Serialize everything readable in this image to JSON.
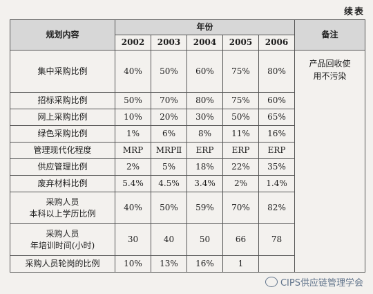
{
  "continued_label": "续表",
  "header": {
    "item": "规划内容",
    "years_label": "年份",
    "note": "备注",
    "years": [
      "2002",
      "2003",
      "2004",
      "2005",
      "2006"
    ]
  },
  "rows": [
    {
      "label": "集中采购比例",
      "values": [
        "40%",
        "50%",
        "60%",
        "75%",
        "80%"
      ],
      "note": "产品回收使用不污染"
    },
    {
      "label": "招标采购比例",
      "values": [
        "50%",
        "70%",
        "80%",
        "75%",
        "60%"
      ]
    },
    {
      "label": "网上采购比例",
      "values": [
        "10%",
        "20%",
        "30%",
        "50%",
        "65%"
      ]
    },
    {
      "label": "绿色采购比例",
      "values": [
        "1%",
        "6%",
        "8%",
        "11%",
        "16%"
      ]
    },
    {
      "label": "管理现代化程度",
      "values": [
        "MRP",
        "MRPⅡ",
        "ERP",
        "ERP",
        "ERP"
      ]
    },
    {
      "label": "供应管理比例",
      "values": [
        "2%",
        "5%",
        "18%",
        "22%",
        "35%"
      ]
    },
    {
      "label": "废弃材料比例",
      "values": [
        "5.4%",
        "4.5%",
        "3.4%",
        "2%",
        "1.4%"
      ]
    },
    {
      "label_line1": "采购人员",
      "label_line2": "本科以上学历比例",
      "values": [
        "40%",
        "50%",
        "59%",
        "70%",
        "82%"
      ]
    },
    {
      "label_line1": "采购人员",
      "label_line2": "年培训时间(小时)",
      "values": [
        "30",
        "40",
        "50",
        "66",
        "78"
      ]
    },
    {
      "label": "采购人员轮岗的比例",
      "values": [
        "10%",
        "13%",
        "16%",
        "1",
        ""
      ]
    }
  ],
  "watermark": {
    "text": "CIPS供应链管理学会",
    "icon": "chat-bubble-icon"
  }
}
